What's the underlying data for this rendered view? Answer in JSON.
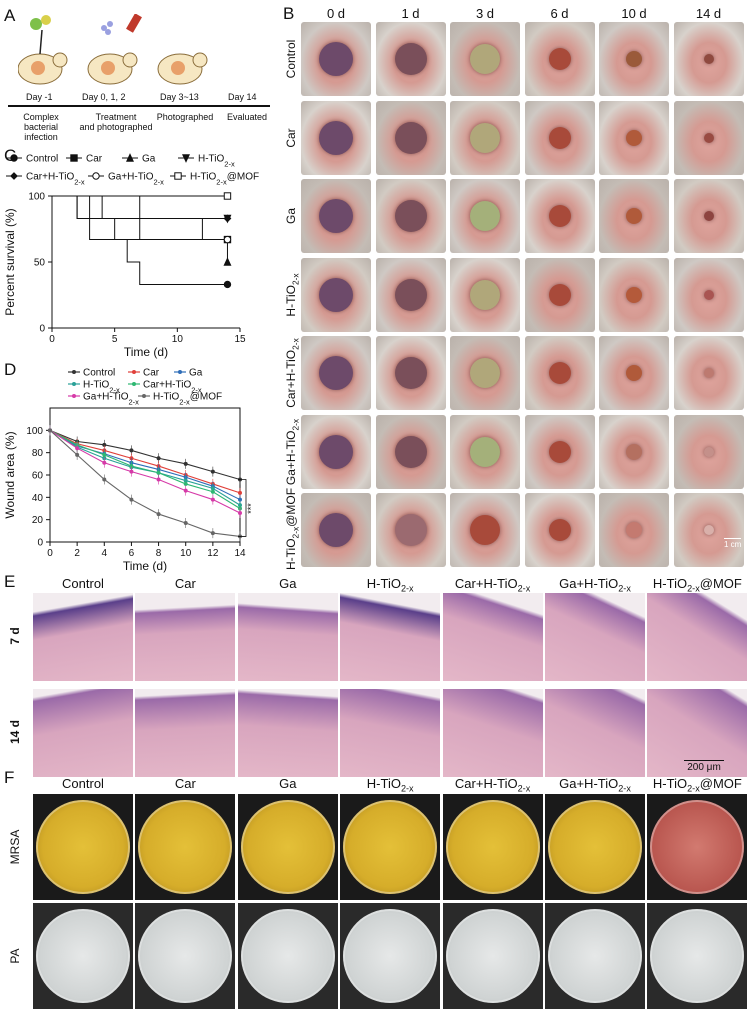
{
  "panels": {
    "a": "A",
    "b": "B",
    "c": "C",
    "d": "D",
    "e": "E",
    "f": "F"
  },
  "timeline": {
    "labels": [
      "Day -1",
      "Day 0, 1, 2",
      "Day 3~13",
      "Day 14"
    ],
    "sublabels": [
      "Complex bacterial\ninfection",
      "Treatment\nand photographed",
      "Photographed",
      "Evaluated"
    ]
  },
  "photo_grid": {
    "days": [
      "0 d",
      "1 d",
      "3 d",
      "6 d",
      "10 d",
      "14 d"
    ],
    "groups": [
      "Control",
      "Car",
      "Ga",
      "H-TiO2-x",
      "Car+H-TiO2-x",
      "Ga+H-TiO2-x",
      "H-TiO2-x@MOF"
    ],
    "scale_bar": "1 cm"
  },
  "histology": {
    "groups": [
      "Control",
      "Car",
      "Ga",
      "H-TiO2-x",
      "Car+H-TiO2-x",
      "Ga+H-TiO2-x",
      "H-TiO2-x@MOF"
    ],
    "rows": [
      "7 d",
      "14 d"
    ],
    "scale_bar": "200 μm"
  },
  "plates": {
    "groups": [
      "Control",
      "Car",
      "Ga",
      "H-TiO2-x",
      "Car+H-TiO2-x",
      "Ga+H-TiO2-x",
      "H-TiO2-x@MOF"
    ],
    "rows": [
      "MRSA",
      "PA"
    ]
  },
  "chart_data": [
    {
      "type": "line",
      "panel": "C",
      "xlabel": "Time (d)",
      "ylabel": "Percent survival (%)",
      "xlim": [
        0,
        15
      ],
      "ylim": [
        0,
        100
      ],
      "xticks": [
        0,
        5,
        10,
        15
      ],
      "yticks": [
        0,
        50,
        100
      ],
      "legend_placement": "top",
      "series": [
        {
          "name": "Control",
          "marker": "circle",
          "x": [
            0,
            2,
            3,
            6,
            7,
            14
          ],
          "y": [
            100,
            83,
            67,
            50,
            33,
            33
          ]
        },
        {
          "name": "Car",
          "marker": "square",
          "x": [
            0,
            3,
            5,
            12,
            14
          ],
          "y": [
            100,
            83,
            67,
            67,
            67
          ]
        },
        {
          "name": "Ga",
          "marker": "triangle",
          "x": [
            0,
            4,
            5,
            12,
            14
          ],
          "y": [
            100,
            83,
            83,
            67,
            50
          ]
        },
        {
          "name": "H-TiO2-x",
          "marker": "triangle-down",
          "x": [
            0,
            2,
            4,
            14
          ],
          "y": [
            100,
            83,
            83,
            83
          ]
        },
        {
          "name": "Car+H-TiO2-x",
          "marker": "diamond",
          "x": [
            0,
            2,
            14
          ],
          "y": [
            100,
            83,
            83
          ]
        },
        {
          "name": "Ga+H-TiO2-x",
          "marker": "circle-open",
          "x": [
            0,
            7,
            14
          ],
          "y": [
            100,
            67,
            67
          ]
        },
        {
          "name": "H-TiO2-x@MOF",
          "marker": "square-open",
          "x": [
            0,
            14
          ],
          "y": [
            100,
            100
          ]
        }
      ]
    },
    {
      "type": "line",
      "panel": "D",
      "xlabel": "Time (d)",
      "ylabel": "Wound area (%)",
      "xlim": [
        0,
        14
      ],
      "ylim": [
        0,
        120
      ],
      "xticks": [
        0,
        2,
        4,
        6,
        8,
        10,
        12,
        14
      ],
      "yticks": [
        0,
        20,
        40,
        60,
        80,
        100
      ],
      "legend_placement": "top",
      "annotation": "***",
      "x": [
        0,
        2,
        4,
        6,
        8,
        10,
        12,
        14
      ],
      "series": [
        {
          "name": "Control",
          "color": "#333333",
          "values": [
            100,
            90,
            87,
            82,
            75,
            70,
            63,
            56
          ]
        },
        {
          "name": "Car",
          "color": "#e0403a",
          "values": [
            100,
            88,
            82,
            75,
            68,
            60,
            52,
            44
          ]
        },
        {
          "name": "Ga",
          "color": "#2f6db8",
          "values": [
            100,
            86,
            79,
            71,
            65,
            58,
            50,
            38
          ]
        },
        {
          "name": "H-TiO2-x",
          "color": "#2aa198",
          "values": [
            100,
            85,
            75,
            67,
            62,
            55,
            48,
            33
          ]
        },
        {
          "name": "Car+H-TiO2-x",
          "color": "#2eb872",
          "values": [
            100,
            87,
            78,
            68,
            62,
            52,
            45,
            30
          ]
        },
        {
          "name": "Ga+H-TiO2-x",
          "color": "#d63aa8",
          "values": [
            100,
            84,
            71,
            63,
            56,
            46,
            38,
            26
          ]
        },
        {
          "name": "H-TiO2-x@MOF",
          "color": "#666666",
          "values": [
            100,
            78,
            56,
            38,
            25,
            17,
            8,
            5
          ]
        }
      ]
    }
  ]
}
